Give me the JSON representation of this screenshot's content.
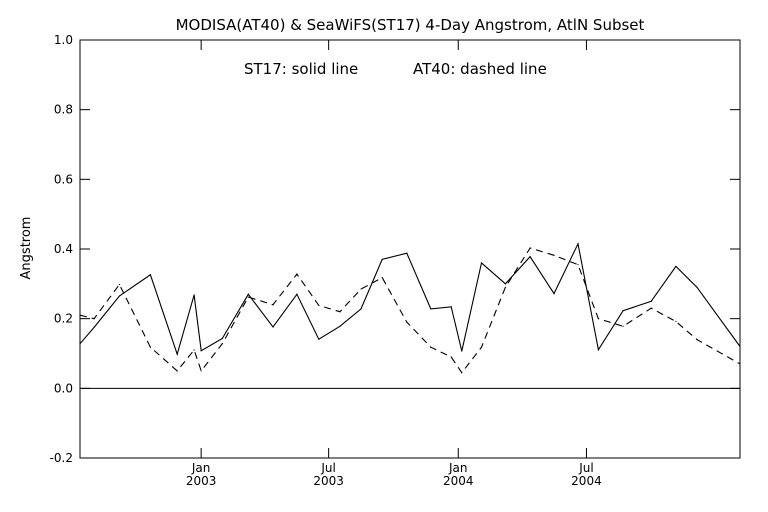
{
  "chart_data": {
    "type": "line",
    "title": "MODISA(AT40) & SeaWiFS(ST17) 4-Day Angstrom, AtlN Subset",
    "annotation": {
      "solid": "ST17: solid line",
      "dashed": "AT40: dashed line"
    },
    "ylabel": "Angstrom",
    "xlabel": "",
    "ylim": [
      -0.2,
      1.0
    ],
    "xlim": [
      "2002-07-13",
      "2005-02-04"
    ],
    "yticks": [
      "-0.2",
      "0.0",
      "0.2",
      "0.4",
      "0.6",
      "0.8",
      "1.0"
    ],
    "xticks": [
      {
        "date": "2003-01-01",
        "month": "Jan",
        "year": "2003"
      },
      {
        "date": "2003-07-01",
        "month": "Jul",
        "year": "2003"
      },
      {
        "date": "2004-01-01",
        "month": "Jan",
        "year": "2004"
      },
      {
        "date": "2004-07-01",
        "month": "Jul",
        "year": "2004"
      }
    ],
    "zero_line": true,
    "grid": false,
    "series": [
      {
        "name": "ST17",
        "style": "solid",
        "color": "#000000",
        "points": [
          {
            "x": "2002-07-13",
            "y": 0.128
          },
          {
            "x": "2002-08-02",
            "y": 0.175
          },
          {
            "x": "2002-09-07",
            "y": 0.265
          },
          {
            "x": "2002-10-21",
            "y": 0.326
          },
          {
            "x": "2002-11-28",
            "y": 0.098
          },
          {
            "x": "2002-12-22",
            "y": 0.268
          },
          {
            "x": "2003-01-01",
            "y": 0.108
          },
          {
            "x": "2003-01-31",
            "y": 0.143
          },
          {
            "x": "2003-03-09",
            "y": 0.27
          },
          {
            "x": "2003-04-13",
            "y": 0.176
          },
          {
            "x": "2003-05-17",
            "y": 0.27
          },
          {
            "x": "2003-06-17",
            "y": 0.141
          },
          {
            "x": "2003-07-17",
            "y": 0.178
          },
          {
            "x": "2003-08-16",
            "y": 0.228
          },
          {
            "x": "2003-09-15",
            "y": 0.37
          },
          {
            "x": "2003-10-20",
            "y": 0.388
          },
          {
            "x": "2003-11-23",
            "y": 0.228
          },
          {
            "x": "2003-12-22",
            "y": 0.234
          },
          {
            "x": "2004-01-06",
            "y": 0.107
          },
          {
            "x": "2004-02-03",
            "y": 0.36
          },
          {
            "x": "2004-03-08",
            "y": 0.3
          },
          {
            "x": "2004-04-12",
            "y": 0.378
          },
          {
            "x": "2004-05-16",
            "y": 0.272
          },
          {
            "x": "2004-06-19",
            "y": 0.415
          },
          {
            "x": "2004-07-18",
            "y": 0.111
          },
          {
            "x": "2004-08-22",
            "y": 0.223
          },
          {
            "x": "2004-10-01",
            "y": 0.25
          },
          {
            "x": "2004-11-05",
            "y": 0.35
          },
          {
            "x": "2004-12-05",
            "y": 0.29
          },
          {
            "x": "2005-02-04",
            "y": 0.12
          }
        ]
      },
      {
        "name": "AT40",
        "style": "dashed",
        "color": "#000000",
        "points": [
          {
            "x": "2002-07-13",
            "y": 0.21
          },
          {
            "x": "2002-08-02",
            "y": 0.2
          },
          {
            "x": "2002-09-07",
            "y": 0.298
          },
          {
            "x": "2002-10-21",
            "y": 0.118
          },
          {
            "x": "2002-11-28",
            "y": 0.05
          },
          {
            "x": "2002-12-22",
            "y": 0.11
          },
          {
            "x": "2003-01-01",
            "y": 0.05
          },
          {
            "x": "2003-01-31",
            "y": 0.128
          },
          {
            "x": "2003-03-09",
            "y": 0.262
          },
          {
            "x": "2003-04-13",
            "y": 0.24
          },
          {
            "x": "2003-05-17",
            "y": 0.328
          },
          {
            "x": "2003-06-17",
            "y": 0.238
          },
          {
            "x": "2003-07-17",
            "y": 0.22
          },
          {
            "x": "2003-08-16",
            "y": 0.285
          },
          {
            "x": "2003-09-15",
            "y": 0.318
          },
          {
            "x": "2003-10-20",
            "y": 0.19
          },
          {
            "x": "2003-11-23",
            "y": 0.118
          },
          {
            "x": "2003-12-22",
            "y": 0.09
          },
          {
            "x": "2004-01-06",
            "y": 0.045
          },
          {
            "x": "2004-02-03",
            "y": 0.118
          },
          {
            "x": "2004-03-08",
            "y": 0.29
          },
          {
            "x": "2004-04-12",
            "y": 0.403
          },
          {
            "x": "2004-05-16",
            "y": 0.382
          },
          {
            "x": "2004-06-19",
            "y": 0.355
          },
          {
            "x": "2004-07-18",
            "y": 0.2
          },
          {
            "x": "2004-08-22",
            "y": 0.178
          },
          {
            "x": "2004-10-01",
            "y": 0.23
          },
          {
            "x": "2004-11-05",
            "y": 0.192
          },
          {
            "x": "2004-12-05",
            "y": 0.14
          },
          {
            "x": "2005-02-04",
            "y": 0.07
          }
        ]
      }
    ]
  }
}
